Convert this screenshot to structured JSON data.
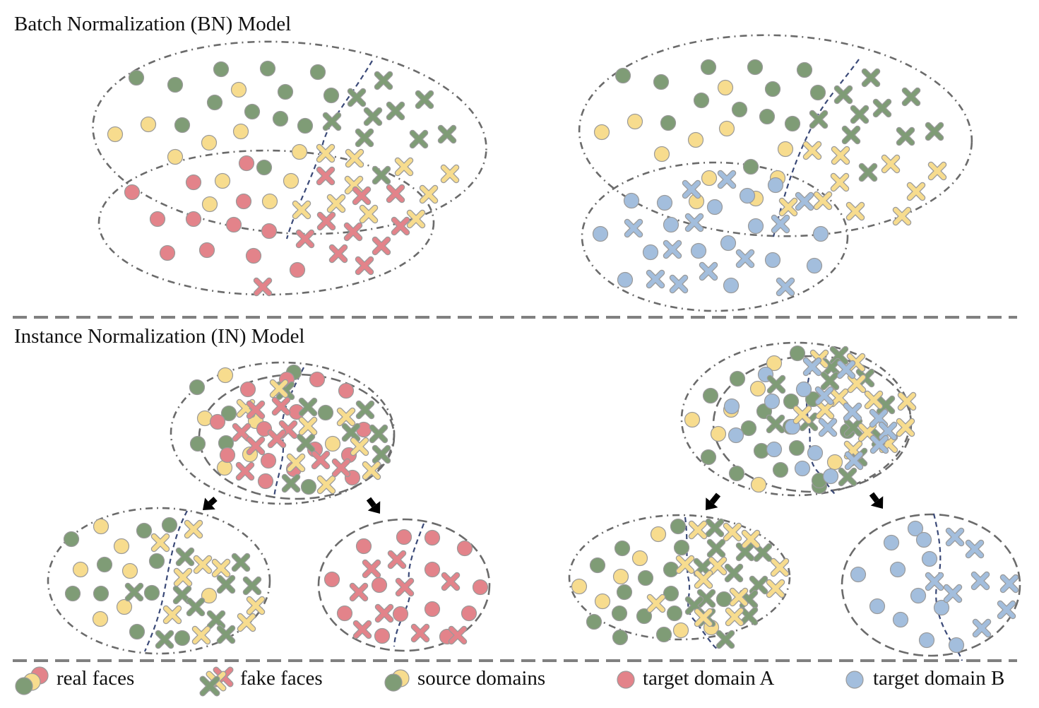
{
  "sections": {
    "bn_title": "Batch Normalization (BN) Model",
    "in_title": "Instance Normalization (IN) Model"
  },
  "legend": {
    "real": "real faces",
    "fake": "fake faces",
    "source": "source domains",
    "target_a": "target domain A",
    "target_b": "target domain B"
  },
  "colors": {
    "green": "#7f9c76",
    "yellow": "#f7dc8e",
    "red": "#e3838a",
    "blue": "#a3bedd",
    "ellipse_stroke": "#6b6b6b",
    "boundary": "#3b4a78",
    "separator": "#808080",
    "arrow": "#000000"
  }
}
